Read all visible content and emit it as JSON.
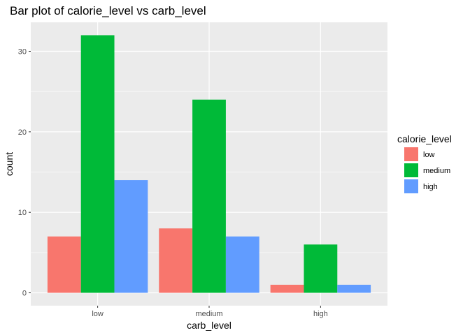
{
  "chart_data": {
    "type": "bar",
    "title": "Bar plot of calorie_level vs carb_level",
    "xlabel": "carb_level",
    "ylabel": "count",
    "categories": [
      "low",
      "medium",
      "high"
    ],
    "series": [
      {
        "name": "low",
        "values": [
          7,
          8,
          1
        ],
        "color": "#F8766D"
      },
      {
        "name": "medium",
        "values": [
          32,
          24,
          6
        ],
        "color": "#00BA38"
      },
      {
        "name": "high",
        "values": [
          14,
          7,
          1
        ],
        "color": "#619CFF"
      }
    ],
    "yticks": [
      0,
      10,
      20,
      30
    ],
    "ylim": [
      -1.6,
      33.6
    ],
    "grid": true,
    "legend": {
      "title": "calorie_level",
      "position": "right"
    },
    "panel_background": "#EBEBEB",
    "grid_color": "#FFFFFF"
  }
}
